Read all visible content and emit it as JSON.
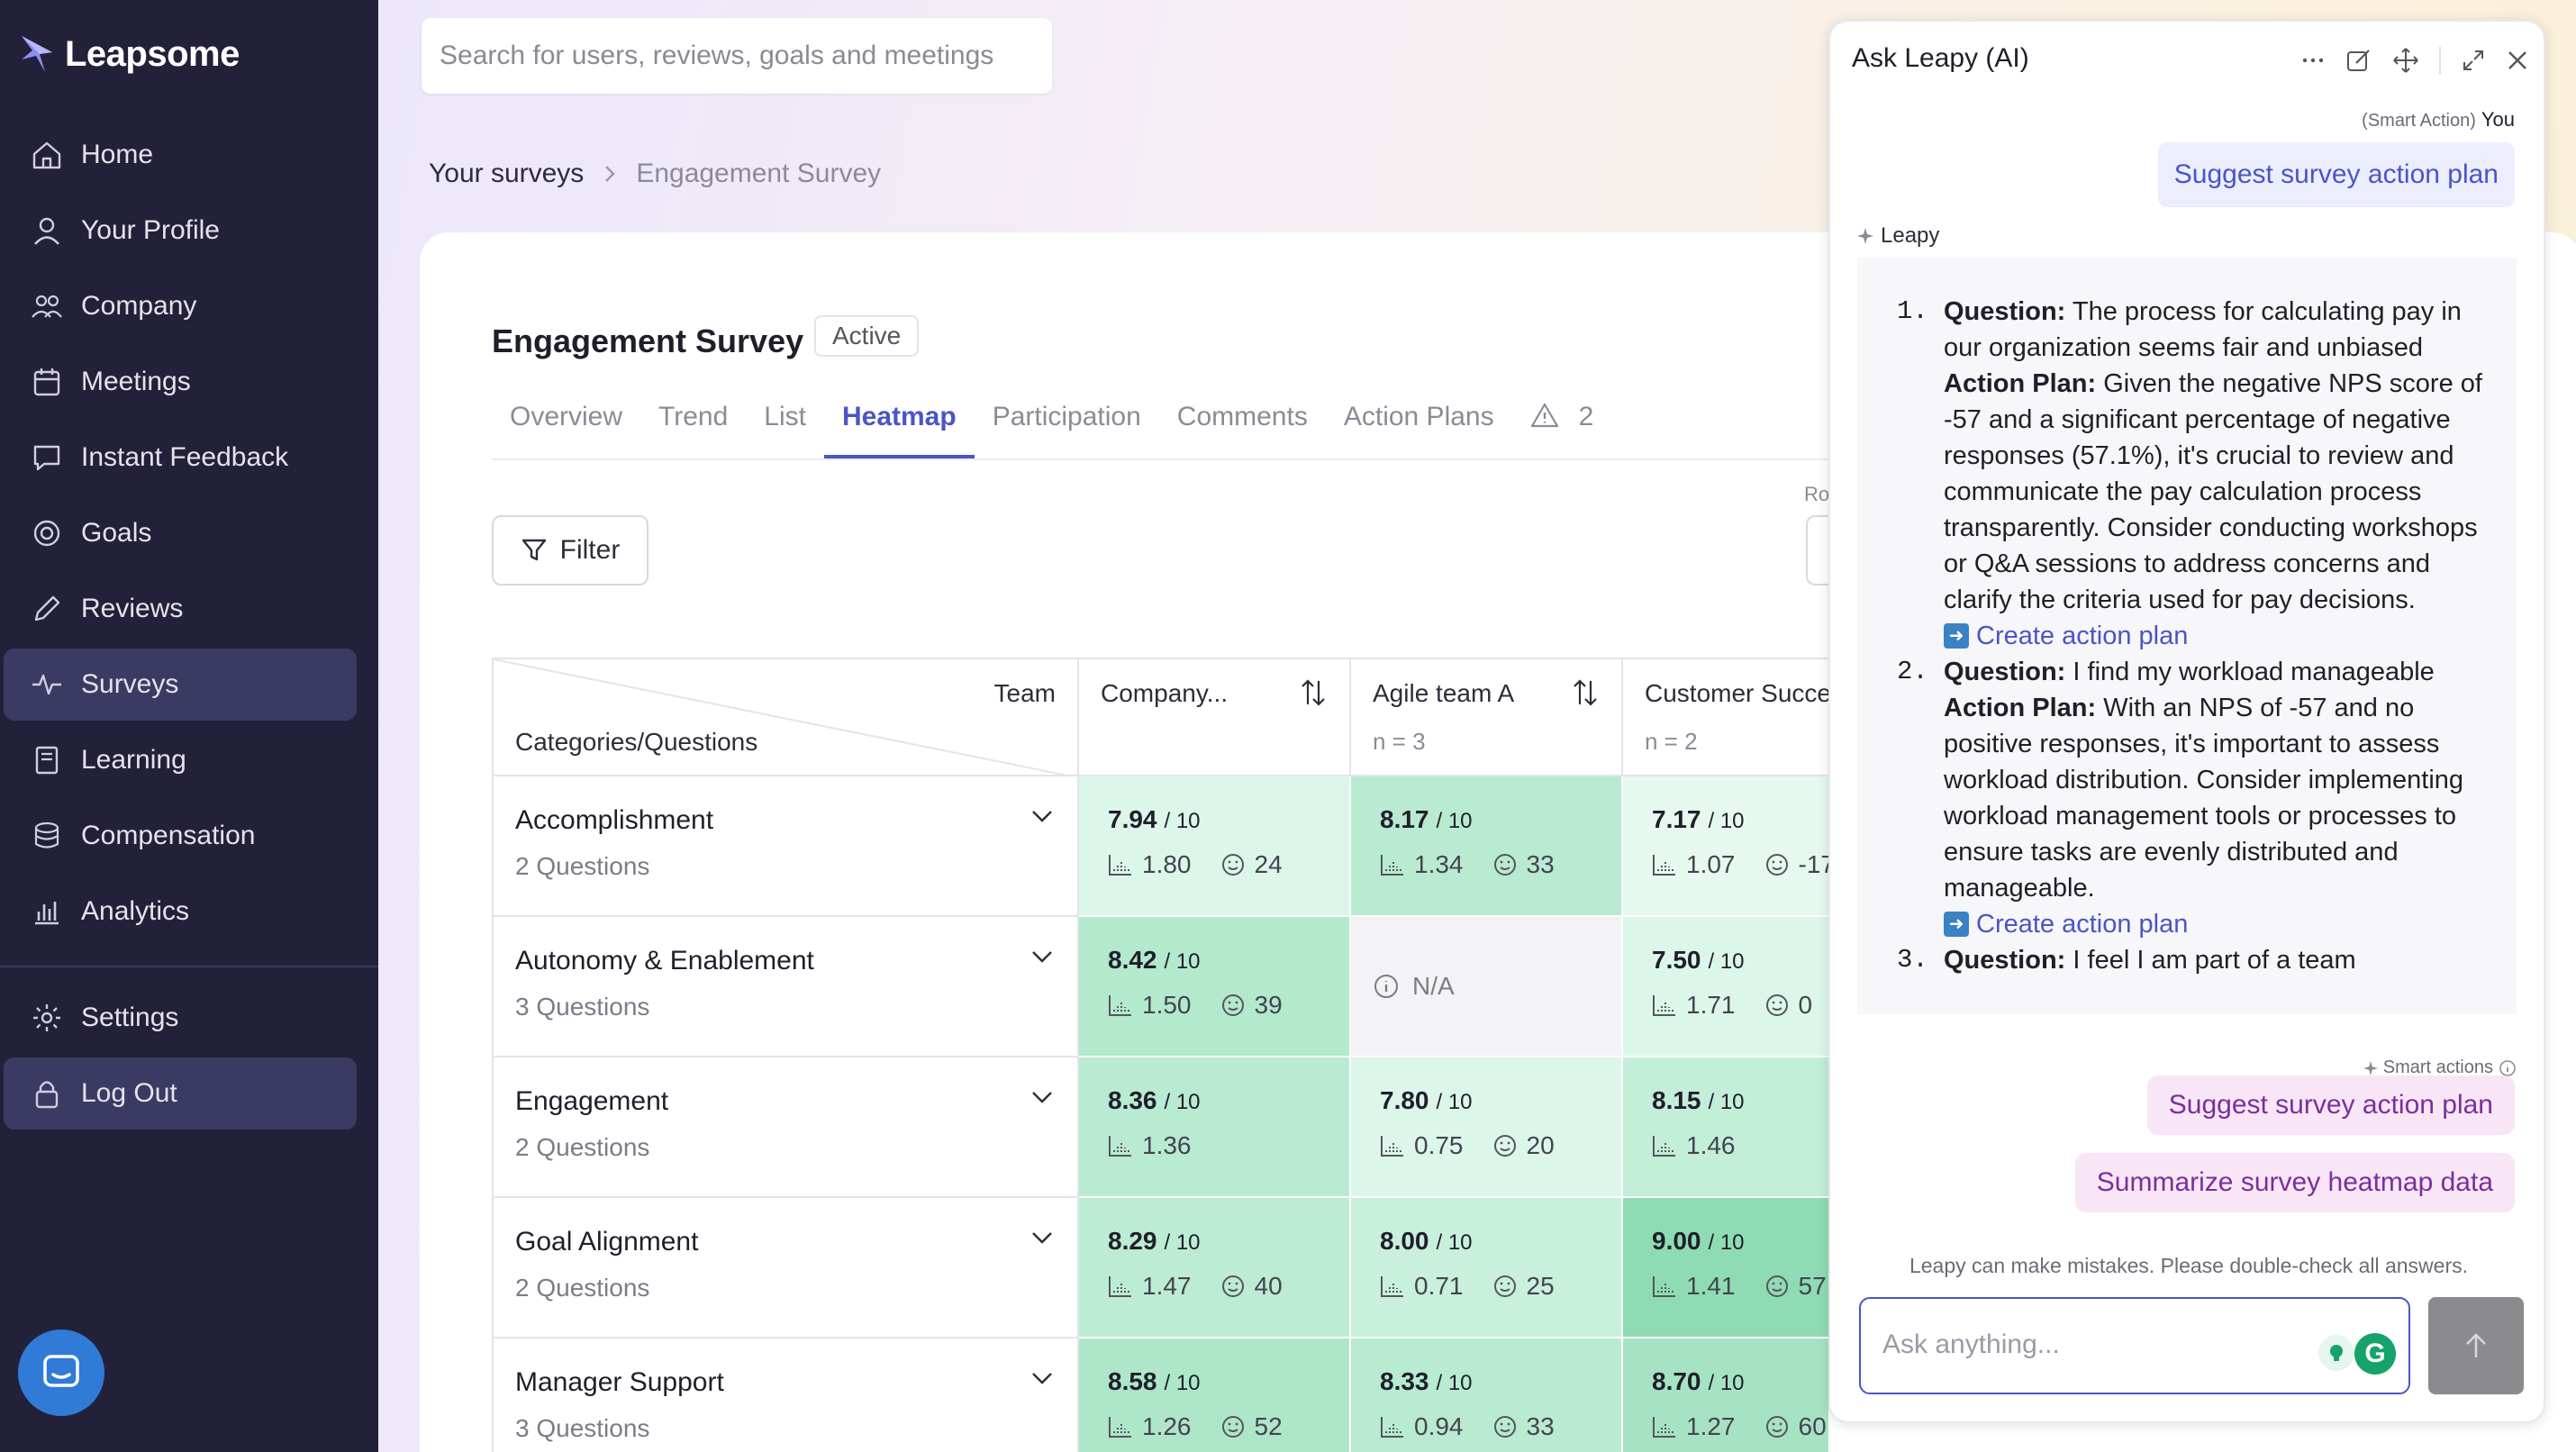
{
  "brand": {
    "name": "Leapsome"
  },
  "sidebar": {
    "items": [
      {
        "label": "Home",
        "icon": "home-icon"
      },
      {
        "label": "Your Profile",
        "icon": "user-icon"
      },
      {
        "label": "Company",
        "icon": "users-icon"
      },
      {
        "label": "Meetings",
        "icon": "calendar-icon"
      },
      {
        "label": "Instant Feedback",
        "icon": "chat-icon"
      },
      {
        "label": "Goals",
        "icon": "target-icon"
      },
      {
        "label": "Reviews",
        "icon": "pencil-icon"
      },
      {
        "label": "Surveys",
        "icon": "pulse-icon",
        "active": true
      },
      {
        "label": "Learning",
        "icon": "book-icon"
      },
      {
        "label": "Compensation",
        "icon": "coins-icon"
      },
      {
        "label": "Analytics",
        "icon": "chart-icon"
      }
    ],
    "bottom": [
      {
        "label": "Settings",
        "icon": "gear-icon"
      },
      {
        "label": "Log Out",
        "icon": "lock-icon"
      }
    ]
  },
  "search": {
    "placeholder": "Search for users, reviews, goals and meetings"
  },
  "breadcrumb": {
    "parent": "Your surveys",
    "current": "Engagement Survey"
  },
  "survey": {
    "title": "Engagement Survey",
    "status": "Active",
    "tabs": [
      "Overview",
      "Trend",
      "List",
      "Heatmap",
      "Participation",
      "Comments",
      "Action Plans"
    ],
    "active_tab": "Heatmap",
    "warning_count": "2",
    "filter_label": "Filter",
    "ro_label": "Ro"
  },
  "heatmap": {
    "corner": {
      "team": "Team",
      "rows": "Categories/Questions"
    },
    "columns": [
      {
        "name": "Company...",
        "n": ""
      },
      {
        "name": "Agile team A",
        "n": "n = 3"
      },
      {
        "name": "Customer Succe",
        "n": "n = 2"
      }
    ],
    "rows": [
      {
        "category": "Accomplishment",
        "questions": "2 Questions",
        "cells": [
          {
            "score": "7.94",
            "of": "/ 10",
            "dev": "1.80",
            "nps": "24",
            "color": "#dcf7ea"
          },
          {
            "score": "8.17",
            "of": "/ 10",
            "dev": "1.34",
            "nps": "33",
            "color": "#b8ebd1"
          },
          {
            "score": "7.17",
            "of": "/ 10",
            "dev": "1.07",
            "nps": "-17",
            "color": "#e6f9ef"
          }
        ]
      },
      {
        "category": "Autonomy & Enablement",
        "questions": "3 Questions",
        "cells": [
          {
            "score": "8.42",
            "of": "/ 10",
            "dev": "1.50",
            "nps": "39",
            "color": "#b3e9cd"
          },
          {
            "na": "N/A",
            "color": "#f3f3f6"
          },
          {
            "score": "7.50",
            "of": "/ 10",
            "dev": "1.71",
            "nps": "0",
            "color": "#dcf7ea"
          }
        ]
      },
      {
        "category": "Engagement",
        "questions": "2 Questions",
        "cells": [
          {
            "score": "8.36",
            "of": "/ 10",
            "dev": "1.36",
            "nps": "",
            "color": "#b8ebd1"
          },
          {
            "score": "7.80",
            "of": "/ 10",
            "dev": "0.75",
            "nps": "20",
            "color": "#dcf7ea"
          },
          {
            "score": "8.15",
            "of": "/ 10",
            "dev": "1.46",
            "nps": "",
            "color": "#c3eed8"
          }
        ]
      },
      {
        "category": "Goal Alignment",
        "questions": "2 Questions",
        "cells": [
          {
            "score": "8.29",
            "of": "/ 10",
            "dev": "1.47",
            "nps": "40",
            "color": "#bcecd3"
          },
          {
            "score": "8.00",
            "of": "/ 10",
            "dev": "0.71",
            "nps": "25",
            "color": "#c9f0dc"
          },
          {
            "score": "9.00",
            "of": "/ 10",
            "dev": "1.41",
            "nps": "57",
            "color": "#8fdcb4"
          }
        ]
      },
      {
        "category": "Manager Support",
        "questions": "3 Questions",
        "cells": [
          {
            "score": "8.58",
            "of": "/ 10",
            "dev": "1.26",
            "nps": "52",
            "color": "#aee6c9"
          },
          {
            "score": "8.33",
            "of": "/ 10",
            "dev": "0.94",
            "nps": "33",
            "color": "#b8ebd1"
          },
          {
            "score": "8.70",
            "of": "/ 10",
            "dev": "1.27",
            "nps": "60",
            "color": "#a6e3c4"
          }
        ]
      }
    ]
  },
  "ai": {
    "title": "Ask Leapy (AI)",
    "you_meta": "(Smart Action)",
    "you_label": "You",
    "user_message": "Suggest survey action plan",
    "assistant_label": "Leapy",
    "answer": [
      {
        "num": "1.",
        "q_label": "Question:",
        "question": "The process for calculating pay in our organization seems fair and unbiased",
        "a_label": "Action Plan:",
        "plan": "Given the negative NPS score of -57 and a significant percentage of negative responses (57.1%), it's crucial to review and communicate the pay calculation process transparently. Consider conducting workshops or Q&A sessions to address concerns and clarify the criteria used for pay decisions.",
        "link": "Create action plan"
      },
      {
        "num": "2.",
        "q_label": "Question:",
        "question": "I find my workload manageable",
        "a_label": "Action Plan:",
        "plan": "With an NPS of -57 and no positive responses, it's important to assess workload distribution. Consider implementing workload management tools or processes to ensure tasks are evenly distributed and manageable.",
        "link": "Create action plan"
      },
      {
        "num": "3.",
        "q_label": "Question:",
        "question": "I feel I am part of a team",
        "a_label": "",
        "plan": "",
        "link": ""
      }
    ],
    "smart_actions_label": "Smart actions",
    "chips": [
      "Suggest survey action plan",
      "Summarize survey heatmap data"
    ],
    "disclaimer": "Leapy can make mistakes. Please double-check all answers.",
    "input_placeholder": "Ask anything..."
  },
  "colors": {
    "sidebar": "#23213a",
    "accent": "#4a55c8",
    "chip": "#f8e6f6"
  }
}
